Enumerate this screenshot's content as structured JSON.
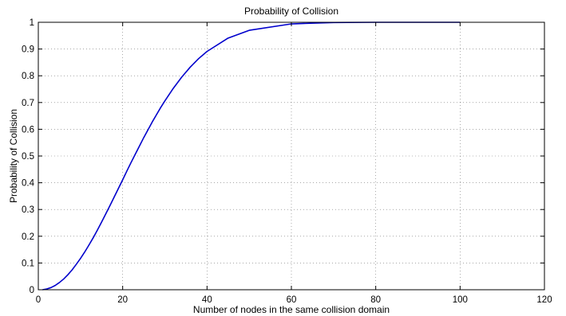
{
  "chart_data": {
    "type": "line",
    "title": "Probability of Collision",
    "xlabel": "Number of nodes in the same collision domain",
    "ylabel": "Probability of Collision",
    "xlim": [
      0,
      120
    ],
    "ylim": [
      0,
      1
    ],
    "xticks": [
      0,
      20,
      40,
      60,
      80,
      100,
      120
    ],
    "yticks": [
      0,
      0.1,
      0.2,
      0.3,
      0.4,
      0.5,
      0.6,
      0.7,
      0.8,
      0.9,
      1
    ],
    "grid": true,
    "series": [
      {
        "color": "#0000cc",
        "x": [
          1,
          2,
          3,
          4,
          5,
          6,
          7,
          8,
          9,
          10,
          11,
          12,
          13,
          14,
          15,
          16,
          17,
          18,
          19,
          20,
          21,
          22,
          23,
          24,
          25,
          26,
          27,
          28,
          29,
          30,
          32,
          34,
          36,
          38,
          40,
          45,
          50,
          60,
          70,
          80,
          90,
          100
        ],
        "y": [
          0,
          0.003,
          0.008,
          0.016,
          0.027,
          0.04,
          0.056,
          0.074,
          0.095,
          0.117,
          0.141,
          0.167,
          0.194,
          0.223,
          0.253,
          0.284,
          0.315,
          0.347,
          0.379,
          0.411,
          0.444,
          0.476,
          0.507,
          0.538,
          0.569,
          0.598,
          0.627,
          0.654,
          0.681,
          0.706,
          0.753,
          0.795,
          0.832,
          0.864,
          0.891,
          0.941,
          0.97,
          0.994,
          0.999,
          1.0,
          1.0,
          1.0
        ]
      }
    ]
  }
}
